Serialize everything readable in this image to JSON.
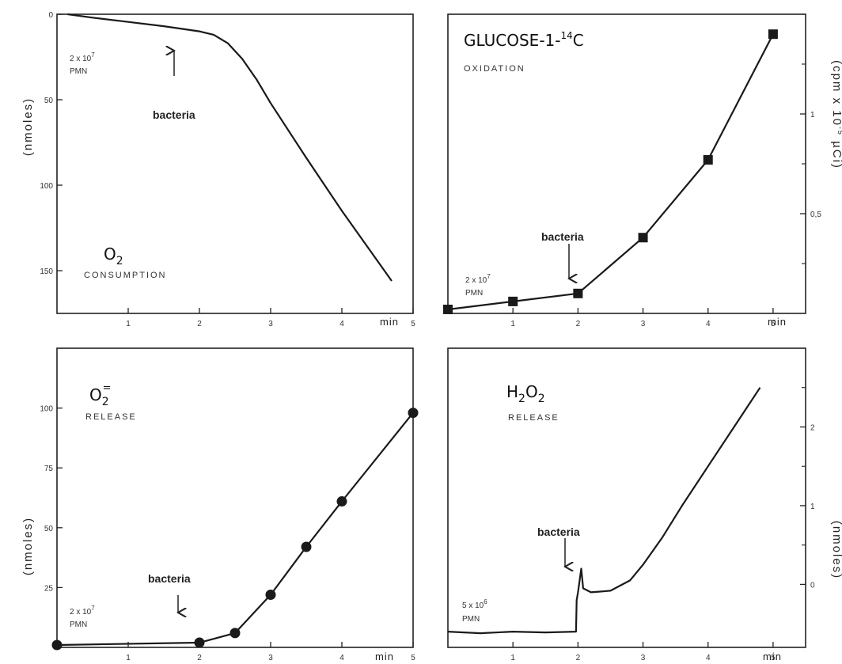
{
  "chart_data": [
    {
      "id": "p1",
      "type": "line",
      "title": "O",
      "title_sub": "2",
      "subtitle": "CONSUMPTION",
      "ylabel": "(nmoles)",
      "yaxis_side": "left",
      "y_inverted": true,
      "xlim": [
        0,
        5
      ],
      "ylim": [
        0,
        175
      ],
      "x_ticks": [
        "1",
        "2",
        "3",
        "4",
        "5"
      ],
      "x_unit": "min",
      "y_ticks": [
        {
          "value": 0,
          "label": "0"
        },
        {
          "value": 50,
          "label": "50"
        },
        {
          "value": 100,
          "label": "100"
        },
        {
          "value": 150,
          "label": "150"
        }
      ],
      "cells_note": "2 x 10",
      "cells_exp": "7",
      "cells_unit": "PMN",
      "annotation": {
        "label": "bacteria",
        "x": 2,
        "y": 10
      },
      "series": [
        {
          "marker": "none",
          "points": [
            [
              0.15,
              0
            ],
            [
              0.5,
              2
            ],
            [
              1.0,
              4.5
            ],
            [
              1.5,
              7
            ],
            [
              2.0,
              10
            ],
            [
              2.2,
              12
            ],
            [
              2.4,
              17
            ],
            [
              2.6,
              26
            ],
            [
              2.8,
              38
            ],
            [
              3.0,
              52
            ],
            [
              3.5,
              84
            ],
            [
              4.0,
              115
            ],
            [
              4.7,
              156
            ]
          ]
        }
      ]
    },
    {
      "id": "p2",
      "type": "line",
      "title": "GLUCOSE-1-",
      "title_sup": "14",
      "title_end": "C",
      "subtitle": "OXIDATION",
      "ylabel": "(cpm x 10",
      "ylabel_sup": "-5",
      "ylabel_end": " µCi)",
      "yaxis_side": "right",
      "y_inverted": false,
      "xlim": [
        0,
        5.5
      ],
      "ylim": [
        0,
        1.5
      ],
      "x_ticks": [
        "1",
        "2",
        "3",
        "4",
        "5"
      ],
      "x_unit": "min",
      "y_ticks": [
        {
          "value": 0.5,
          "label": "0,5"
        },
        {
          "value": 1,
          "label": "1"
        }
      ],
      "y_minor": [
        0.25,
        0.75,
        1.25
      ],
      "cells_note": "2 x 10",
      "cells_exp": "7",
      "cells_unit": "PMN",
      "annotation": {
        "label": "bacteria",
        "x": 2,
        "y": 0.1
      },
      "series": [
        {
          "marker": "square",
          "points": [
            [
              0,
              0.02
            ],
            [
              1,
              0.06
            ],
            [
              2,
              0.1
            ],
            [
              3,
              0.38
            ],
            [
              4,
              0.77
            ],
            [
              5,
              1.4
            ]
          ]
        }
      ]
    },
    {
      "id": "p3",
      "type": "line",
      "title": "O",
      "title_sub": "2",
      "title_sup": "=",
      "subtitle": "RELEASE",
      "ylabel": "(nmoles)",
      "yaxis_side": "left",
      "y_inverted": false,
      "xlim": [
        0,
        5
      ],
      "ylim": [
        0,
        125
      ],
      "x_ticks": [
        "1",
        "2",
        "3",
        "4",
        "5"
      ],
      "x_unit": "min",
      "y_ticks": [
        {
          "value": 25,
          "label": "25"
        },
        {
          "value": 50,
          "label": "50"
        },
        {
          "value": 75,
          "label": "75"
        },
        {
          "value": 100,
          "label": "100"
        }
      ],
      "cells_note": "2 x 10",
      "cells_exp": "7",
      "cells_unit": "PMN",
      "annotation": {
        "label": "bacteria",
        "x": 2,
        "y": 2
      },
      "series": [
        {
          "marker": "circle",
          "points": [
            [
              0,
              1
            ],
            [
              2,
              2
            ],
            [
              2.5,
              6
            ],
            [
              3,
              22
            ],
            [
              3.5,
              42
            ],
            [
              4,
              61
            ],
            [
              5,
              98
            ]
          ]
        }
      ]
    },
    {
      "id": "p4",
      "type": "line",
      "title": "H",
      "title_sub": "2",
      "title_end": "O",
      "title_end_sub": "2",
      "subtitle": "RELEASE",
      "ylabel": "(nmoles)",
      "yaxis_side": "right",
      "y_inverted": false,
      "xlim": [
        0,
        5.5
      ],
      "ylim": [
        -0.8,
        3.0
      ],
      "x_ticks": [
        "1",
        "2",
        "3",
        "4",
        "5"
      ],
      "x_unit": "min",
      "y_ticks": [
        {
          "value": 0,
          "label": "0"
        },
        {
          "value": 1,
          "label": "1"
        },
        {
          "value": 2,
          "label": "2"
        }
      ],
      "y_minor": [
        0.5,
        1.5,
        2.5
      ],
      "cells_note": "5 x 10",
      "cells_exp": "6",
      "cells_unit": "PMN",
      "annotation": {
        "label": "bacteria",
        "x": 2,
        "y": -0.6
      },
      "series": [
        {
          "marker": "none",
          "points": [
            [
              0,
              -0.6
            ],
            [
              0.5,
              -0.62
            ],
            [
              1.0,
              -0.6
            ],
            [
              1.5,
              -0.61
            ],
            [
              1.97,
              -0.6
            ],
            [
              1.98,
              -0.2
            ],
            [
              2.0,
              -0.1
            ],
            [
              2.05,
              0.2
            ],
            [
              2.08,
              -0.05
            ],
            [
              2.2,
              -0.1
            ],
            [
              2.5,
              -0.08
            ],
            [
              2.8,
              0.05
            ],
            [
              3.0,
              0.25
            ],
            [
              3.3,
              0.6
            ],
            [
              3.6,
              1.0
            ],
            [
              4.0,
              1.5
            ],
            [
              4.4,
              2.0
            ],
            [
              4.8,
              2.5
            ]
          ]
        }
      ]
    }
  ]
}
